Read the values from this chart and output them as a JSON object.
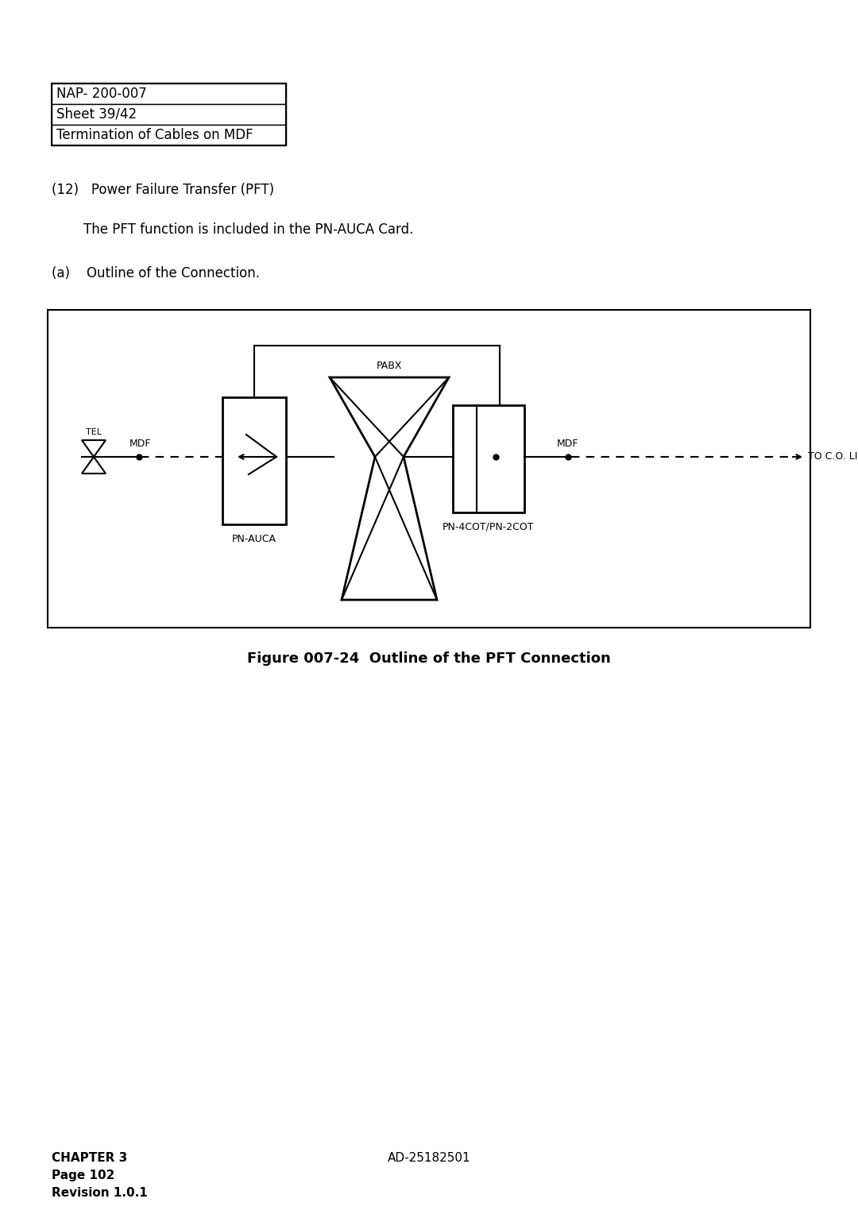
{
  "title": "Figure 007-24  Outline of the PFT Connection",
  "header_lines": [
    "NAP- 200-007",
    "Sheet 39/42",
    "Termination of Cables on MDF"
  ],
  "text_12": "(12)   Power Failure Transfer (PFT)",
  "text_pft": "The PFT function is included in the PN-AUCA Card.",
  "text_a": "(a)    Outline of the Connection.",
  "footer_left": "CHAPTER 3\nPage 102\nRevision 1.0.1",
  "footer_center": "AD-25182501",
  "bg_color": "#ffffff"
}
